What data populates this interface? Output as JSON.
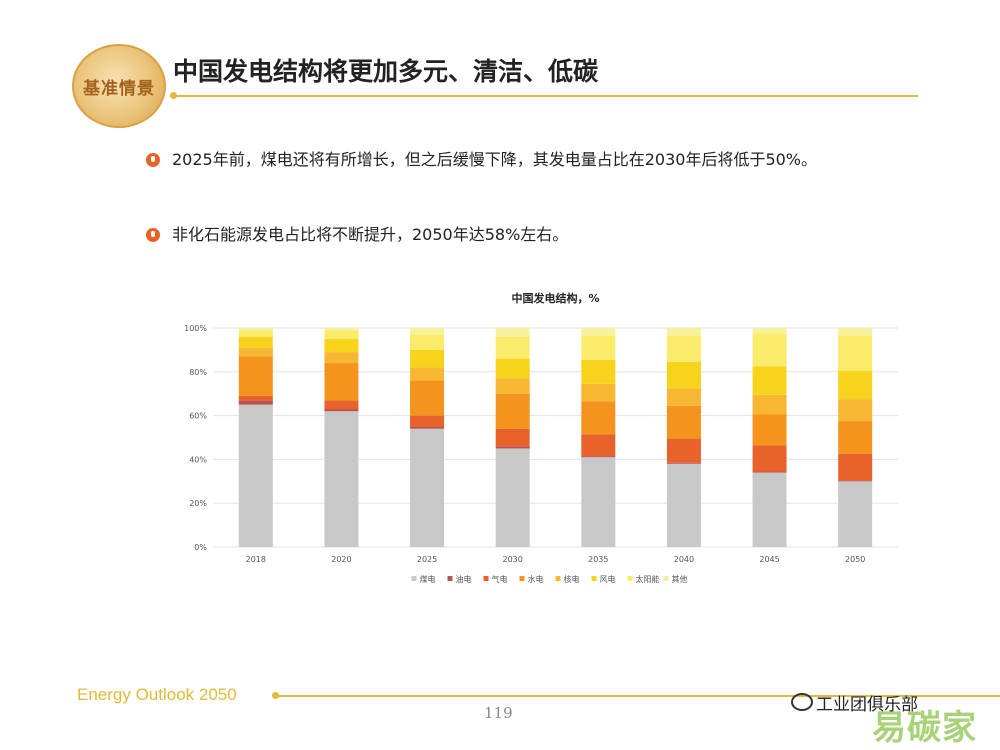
{
  "header": {
    "logo_text": "基准情景",
    "title": "中国发电结构将更加多元、清洁、低碳"
  },
  "bullets": [
    "2025年前，煤电还将有所增长，但之后缓慢下降，其发电量占比在2030年后将低于50%。",
    "非化石能源发电占比将不断提升，2050年达58%左右。"
  ],
  "chart_data": {
    "type": "bar",
    "stacked": true,
    "title": "中国发电结构，%",
    "categories": [
      "2018",
      "2020",
      "2025",
      "2030",
      "2035",
      "2040",
      "2045",
      "2050"
    ],
    "y_ticks": [
      "0%",
      "20%",
      "40%",
      "60%",
      "80%",
      "100%"
    ],
    "ylim": [
      0,
      100
    ],
    "grid": true,
    "legend_position": "bottom",
    "series": [
      {
        "name": "煤电",
        "color": "#c8c8c8",
        "values": [
          65,
          62,
          54,
          45,
          41,
          38,
          34,
          30
        ]
      },
      {
        "name": "油电",
        "color": "#c0504d",
        "values": [
          2,
          1,
          1,
          1,
          0.5,
          0.5,
          0.5,
          0.5
        ]
      },
      {
        "name": "气电",
        "color": "#e8632a",
        "values": [
          2,
          4,
          5,
          8,
          10,
          11,
          12,
          12
        ]
      },
      {
        "name": "水电",
        "color": "#f4941e",
        "values": [
          18,
          17,
          16,
          16,
          15,
          15,
          14,
          15
        ]
      },
      {
        "name": "核电",
        "color": "#f7b733",
        "values": [
          4,
          5,
          6,
          7,
          8,
          8,
          9,
          10
        ]
      },
      {
        "name": "风电",
        "color": "#f8d31c",
        "values": [
          5,
          6,
          8,
          9,
          11,
          12,
          13,
          13
        ]
      },
      {
        "name": "太阳能",
        "color": "#faeb6a",
        "values": [
          3,
          4,
          7,
          10,
          11,
          12,
          15,
          16
        ]
      },
      {
        "name": "其他",
        "color": "#f6f29b",
        "values": [
          1,
          1,
          3,
          4,
          3.5,
          3.5,
          2.5,
          3.5
        ]
      }
    ]
  },
  "footer": {
    "label": "Energy Outlook 2050",
    "page_number": "119",
    "watermark_text": "工业团俱乐部",
    "watermark_logo": "易碳家"
  }
}
